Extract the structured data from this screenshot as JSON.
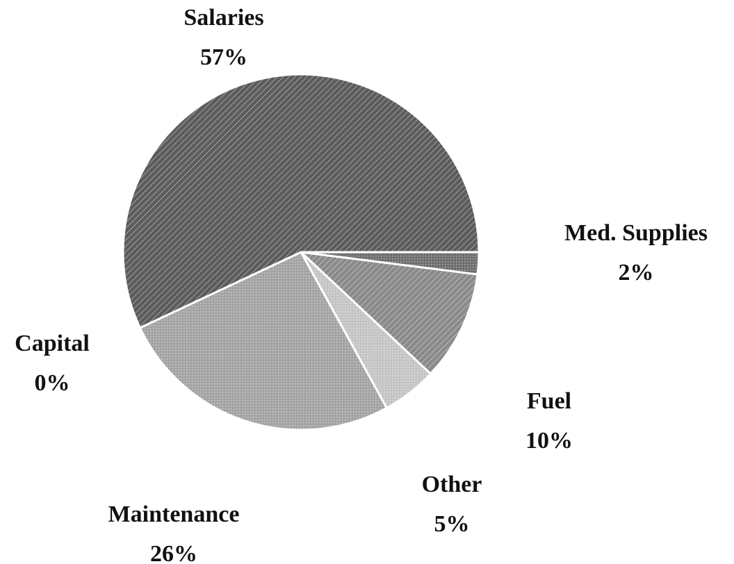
{
  "chart_data": {
    "type": "pie",
    "categories": [
      "Med. Supplies",
      "Fuel",
      "Other",
      "Maintenance",
      "Capital",
      "Salaries"
    ],
    "values": [
      2,
      10,
      5,
      26,
      0,
      57
    ],
    "value_labels": [
      "2%",
      "10%",
      "5%",
      "26%",
      "0%",
      "57%"
    ],
    "colors": [
      "#6e6e6e",
      "#8a8a8a",
      "#c4c4c4",
      "#a3a3a3",
      "#b0b0b0",
      "#5c5c5c"
    ]
  }
}
